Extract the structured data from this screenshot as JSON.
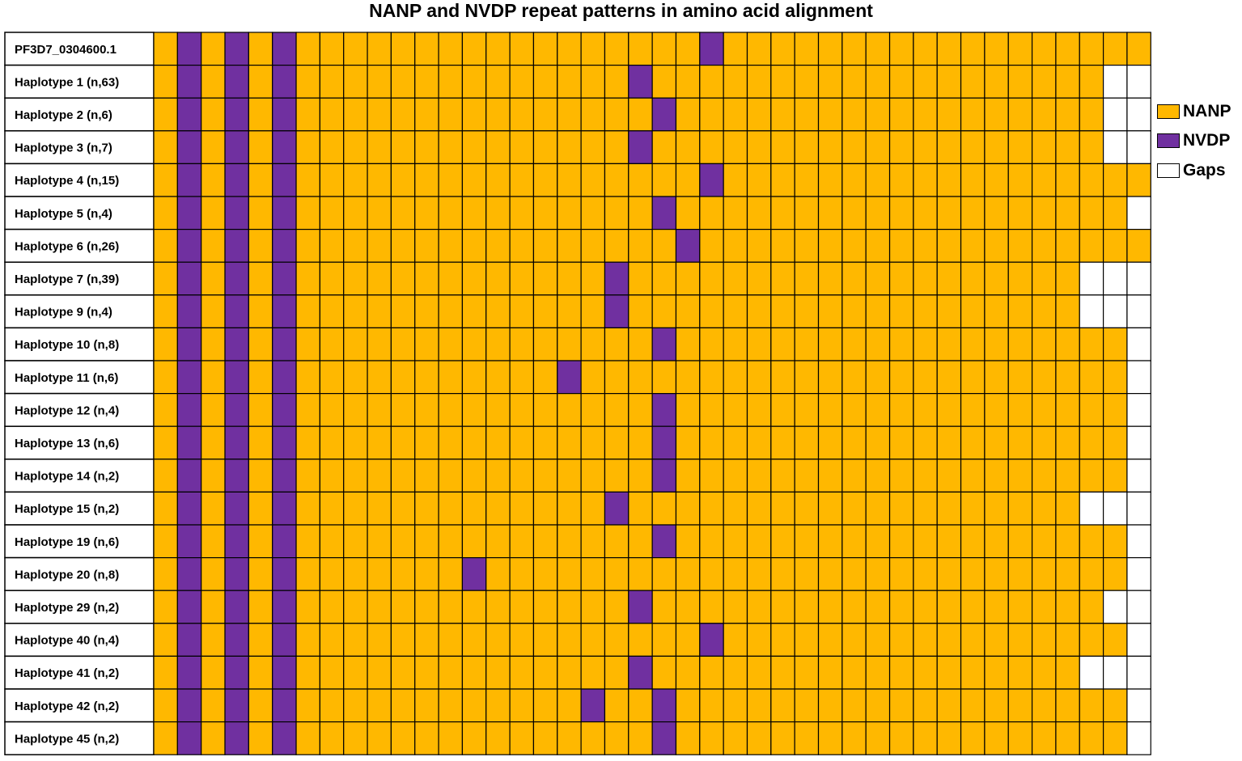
{
  "chart_data": {
    "type": "heatmap",
    "title": "NANP and NVDP repeat patterns in amino acid alignment",
    "colors": {
      "NANP": "#FFB800",
      "NVDP": "#7030A0",
      "Gaps": "#FFFFFF"
    },
    "legend": {
      "placement": "right",
      "entries": [
        {
          "label": "NANP",
          "color": "#FFB800"
        },
        {
          "label": "NVDP",
          "color": "#7030A0"
        },
        {
          "label": "Gaps",
          "color": "#FFFFFF"
        }
      ]
    },
    "num_columns": 42,
    "rows": [
      {
        "label": "PF3D7_0304600.1",
        "nvdp": [
          2,
          4,
          6,
          24
        ],
        "gaps": []
      },
      {
        "label": "Haplotype 1 (n,63)",
        "nvdp": [
          2,
          4,
          6,
          21
        ],
        "gaps": [
          41,
          42
        ]
      },
      {
        "label": "Haplotype 2 (n,6)",
        "nvdp": [
          2,
          4,
          6,
          22
        ],
        "gaps": [
          41,
          42
        ]
      },
      {
        "label": "Haplotype 3 (n,7)",
        "nvdp": [
          2,
          4,
          6,
          21
        ],
        "gaps": [
          41,
          42
        ]
      },
      {
        "label": "Haplotype 4 (n,15)",
        "nvdp": [
          2,
          4,
          6,
          24
        ],
        "gaps": []
      },
      {
        "label": "Haplotype 5 (n,4)",
        "nvdp": [
          2,
          4,
          6,
          22
        ],
        "gaps": [
          42
        ]
      },
      {
        "label": "Haplotype 6 (n,26)",
        "nvdp": [
          2,
          4,
          6,
          23
        ],
        "gaps": []
      },
      {
        "label": "Haplotype 7 (n,39)",
        "nvdp": [
          2,
          4,
          6,
          20
        ],
        "gaps": [
          40,
          41,
          42
        ]
      },
      {
        "label": "Haplotype 9 (n,4)",
        "nvdp": [
          2,
          4,
          6,
          20
        ],
        "gaps": [
          40,
          41,
          42
        ]
      },
      {
        "label": "Haplotype 10 (n,8)",
        "nvdp": [
          2,
          4,
          6,
          22
        ],
        "gaps": [
          42
        ]
      },
      {
        "label": "Haplotype 11 (n,6)",
        "nvdp": [
          2,
          4,
          6,
          18
        ],
        "gaps": [
          42
        ]
      },
      {
        "label": "Haplotype 12 (n,4)",
        "nvdp": [
          2,
          4,
          6,
          22
        ],
        "gaps": [
          42
        ]
      },
      {
        "label": "Haplotype 13 (n,6)",
        "nvdp": [
          2,
          4,
          6,
          22
        ],
        "gaps": [
          42
        ]
      },
      {
        "label": "Haplotype 14 (n,2)",
        "nvdp": [
          2,
          4,
          6,
          22
        ],
        "gaps": [
          42
        ]
      },
      {
        "label": "Haplotype 15 (n,2)",
        "nvdp": [
          2,
          4,
          6,
          20
        ],
        "gaps": [
          40,
          41,
          42
        ]
      },
      {
        "label": "Haplotype 19 (n,6)",
        "nvdp": [
          2,
          4,
          6,
          22
        ],
        "gaps": [
          42
        ]
      },
      {
        "label": "Haplotype 20 (n,8)",
        "nvdp": [
          2,
          4,
          6,
          14
        ],
        "gaps": [
          42
        ]
      },
      {
        "label": "Haplotype 29 (n,2)",
        "nvdp": [
          2,
          4,
          6,
          21
        ],
        "gaps": [
          41,
          42
        ]
      },
      {
        "label": "Haplotype 40 (n,4)",
        "nvdp": [
          2,
          4,
          6,
          24
        ],
        "gaps": [
          42
        ]
      },
      {
        "label": "Haplotype 41 (n,2)",
        "nvdp": [
          2,
          4,
          6,
          21
        ],
        "gaps": [
          40,
          41,
          42
        ]
      },
      {
        "label": "Haplotype 42 (n,2)",
        "nvdp": [
          2,
          4,
          6,
          19,
          22
        ],
        "gaps": [
          42
        ]
      },
      {
        "label": "Haplotype 45 (n,2)",
        "nvdp": [
          2,
          4,
          6,
          22
        ],
        "gaps": [
          42
        ]
      }
    ]
  }
}
